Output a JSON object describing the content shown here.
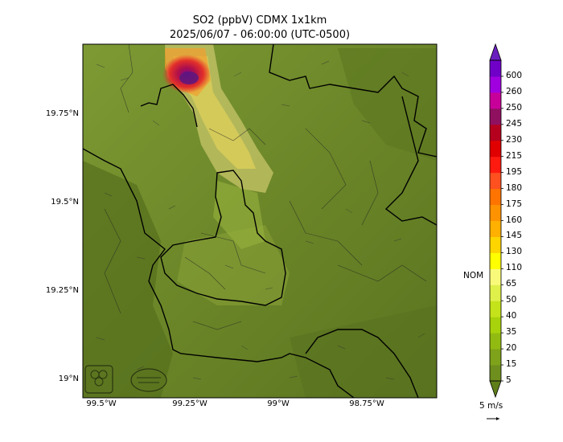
{
  "title": "SO2 (ppbV) CDMX 1x1km",
  "subtitle": "2025/06/07 - 06:00:00 (UTC-0500)",
  "map": {
    "lat_labels": [
      "19.75°N",
      "19.5°N",
      "19.25°N",
      "19°N"
    ],
    "lon_labels": [
      "99.5°W",
      "99.25°W",
      "99°W",
      "98.75°W"
    ],
    "base_color": "#6f8a2a",
    "logos": [
      "sedema-logo-icon",
      "aire-logo-icon"
    ]
  },
  "colorbar": {
    "levels": [
      "5",
      "15",
      "20",
      "35",
      "40",
      "50",
      "65",
      "110",
      "130",
      "145",
      "160",
      "175",
      "180",
      "195",
      "215",
      "230",
      "245",
      "250",
      "260",
      "600"
    ],
    "colors": [
      "#6e8e1e",
      "#7ea21a",
      "#92bb12",
      "#a8d20c",
      "#c4e31a",
      "#e0f04a",
      "#fafa7a",
      "#ffff00",
      "#ffd500",
      "#ffb000",
      "#ff9200",
      "#ff7400",
      "#ff5020",
      "#ff1a10",
      "#e00000",
      "#b5001e",
      "#901060",
      "#c8009a",
      "#a000e0",
      "#7000c8"
    ],
    "nom_label": "NOM",
    "nom_value": 65
  },
  "wind_key": {
    "label": "5 m/s"
  }
}
